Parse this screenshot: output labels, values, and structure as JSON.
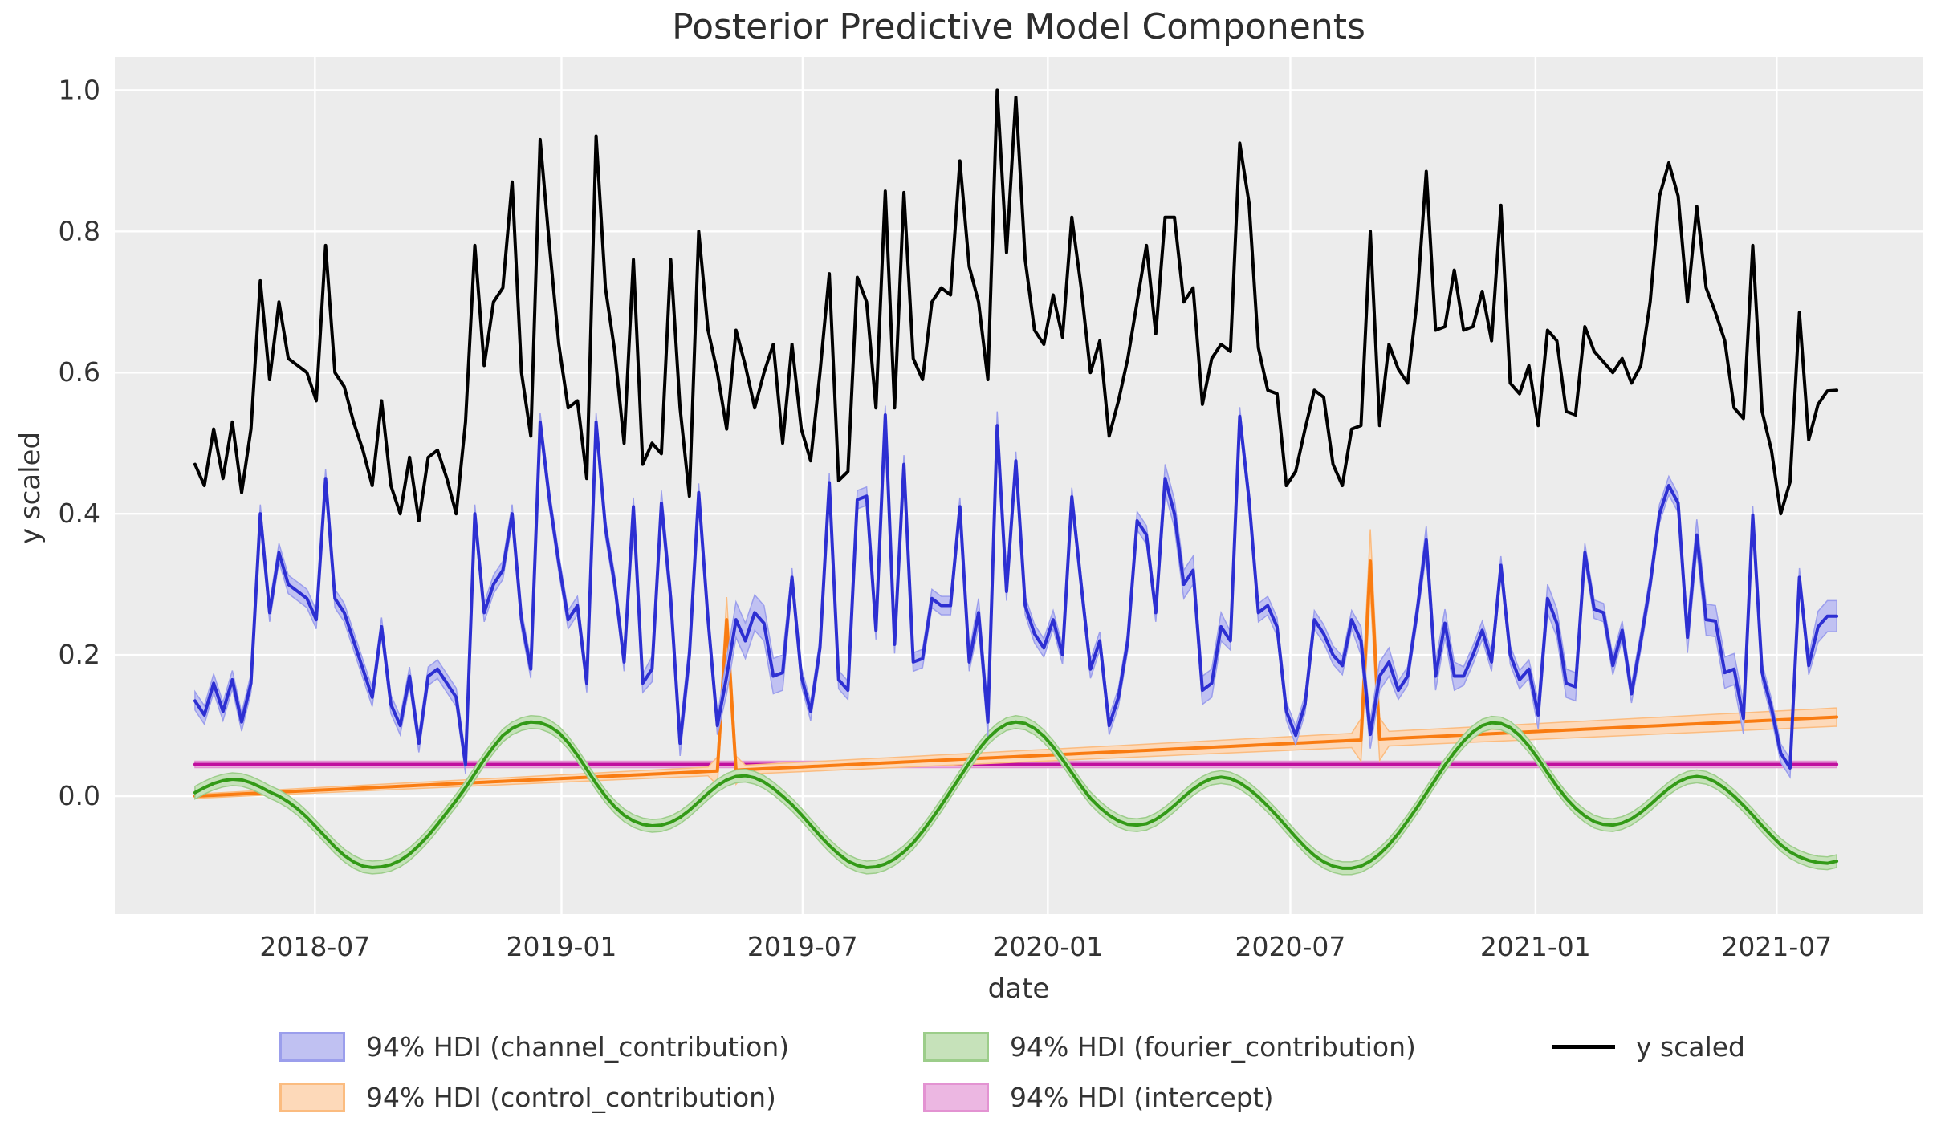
{
  "chart_data": {
    "type": "line",
    "title": "Posterior Predictive Model Components",
    "xlabel": "date",
    "ylabel": "y scaled",
    "background": {
      "plot_bg": "#ececec",
      "grid_color": "#ffffff",
      "figure_bg": "#ffffff",
      "text_color": "#333333"
    },
    "x_axis": {
      "start_date": "2018-04-02",
      "frequency": "weekly",
      "n_points": 177,
      "xlim_weeks": [
        -8.6,
        185.2
      ],
      "ticks": [
        {
          "week": 12.86,
          "label": "2018-07"
        },
        {
          "week": 39.29,
          "label": "2019-01"
        },
        {
          "week": 65.14,
          "label": "2019-07"
        },
        {
          "week": 91.43,
          "label": "2020-01"
        },
        {
          "week": 117.43,
          "label": "2020-07"
        },
        {
          "week": 143.71,
          "label": "2021-01"
        },
        {
          "week": 169.57,
          "label": "2021-07"
        }
      ]
    },
    "y_axis": {
      "ylim": [
        -0.167,
        1.047
      ],
      "ticks": [
        {
          "value": 0.0,
          "label": "0.0"
        },
        {
          "value": 0.2,
          "label": "0.2"
        },
        {
          "value": 0.4,
          "label": "0.4"
        },
        {
          "value": 0.6,
          "label": "0.6"
        },
        {
          "value": 0.8,
          "label": "0.8"
        },
        {
          "value": 1.0,
          "label": "1.0"
        }
      ]
    },
    "grid": true,
    "legend_position": "bottom",
    "series": {
      "y_scaled": {
        "label": "y scaled",
        "color": "#000000",
        "kind": "line",
        "values": [
          0.47,
          0.44,
          0.52,
          0.45,
          0.53,
          0.43,
          0.52,
          0.73,
          0.59,
          0.7,
          0.62,
          0.61,
          0.6,
          0.56,
          0.78,
          0.6,
          0.58,
          0.53,
          0.49,
          0.44,
          0.56,
          0.44,
          0.4,
          0.48,
          0.39,
          0.48,
          0.49,
          0.45,
          0.4,
          0.53,
          0.78,
          0.61,
          0.7,
          0.72,
          0.87,
          0.6,
          0.51,
          0.93,
          0.78,
          0.64,
          0.55,
          0.56,
          0.45,
          0.935,
          0.72,
          0.63,
          0.5,
          0.76,
          0.47,
          0.5,
          0.485,
          0.76,
          0.55,
          0.425,
          0.8,
          0.66,
          0.6,
          0.52,
          0.66,
          0.61,
          0.55,
          0.6,
          0.64,
          0.5,
          0.64,
          0.52,
          0.475,
          0.6,
          0.74,
          0.447,
          0.46,
          0.735,
          0.7,
          0.55,
          0.857,
          0.55,
          0.855,
          0.62,
          0.59,
          0.7,
          0.72,
          0.71,
          0.9,
          0.75,
          0.7,
          0.59,
          1.0,
          0.77,
          0.99,
          0.76,
          0.66,
          0.64,
          0.71,
          0.65,
          0.82,
          0.72,
          0.6,
          0.645,
          0.51,
          0.56,
          0.62,
          0.7,
          0.78,
          0.655,
          0.82,
          0.82,
          0.7,
          0.72,
          0.555,
          0.62,
          0.64,
          0.63,
          0.925,
          0.84,
          0.635,
          0.575,
          0.57,
          0.44,
          0.46,
          0.52,
          0.575,
          0.565,
          0.47,
          0.44,
          0.52,
          0.525,
          0.8,
          0.525,
          0.64,
          0.605,
          0.585,
          0.7,
          0.885,
          0.66,
          0.665,
          0.745,
          0.66,
          0.665,
          0.715,
          0.645,
          0.837,
          0.585,
          0.57,
          0.61,
          0.525,
          0.66,
          0.645,
          0.545,
          0.54,
          0.665,
          0.63,
          0.615,
          0.6,
          0.62,
          0.585,
          0.61,
          0.7,
          0.85,
          0.897,
          0.85,
          0.7,
          0.835,
          0.72,
          0.685,
          0.645,
          0.55,
          0.535,
          0.78,
          0.545,
          0.49,
          0.4,
          0.445,
          0.685,
          0.505,
          0.555,
          0.574,
          0.575
        ]
      },
      "channel_contribution": {
        "label": "94% HDI (channel_contribution)",
        "kind": "hdi_line",
        "color": "#2d2fd2",
        "band_color": "#c0c1f2",
        "band_border": "#9b9eec",
        "values": [
          0.135,
          0.115,
          0.16,
          0.12,
          0.165,
          0.105,
          0.16,
          0.4,
          0.26,
          0.345,
          0.3,
          0.29,
          0.28,
          0.25,
          0.45,
          0.28,
          0.26,
          0.22,
          0.18,
          0.14,
          0.24,
          0.13,
          0.1,
          0.17,
          0.075,
          0.17,
          0.18,
          0.16,
          0.14,
          0.045,
          0.4,
          0.26,
          0.3,
          0.32,
          0.4,
          0.25,
          0.18,
          0.53,
          0.42,
          0.33,
          0.25,
          0.27,
          0.16,
          0.53,
          0.38,
          0.3,
          0.19,
          0.41,
          0.16,
          0.18,
          0.415,
          0.28,
          0.075,
          0.2,
          0.43,
          0.25,
          0.1,
          0.17,
          0.25,
          0.22,
          0.26,
          0.245,
          0.17,
          0.175,
          0.31,
          0.17,
          0.12,
          0.21,
          0.444,
          0.165,
          0.15,
          0.42,
          0.425,
          0.235,
          0.54,
          0.215,
          0.47,
          0.19,
          0.195,
          0.28,
          0.27,
          0.27,
          0.41,
          0.19,
          0.26,
          0.105,
          0.525,
          0.29,
          0.475,
          0.27,
          0.23,
          0.21,
          0.25,
          0.2,
          0.424,
          0.3,
          0.18,
          0.22,
          0.1,
          0.14,
          0.22,
          0.39,
          0.37,
          0.26,
          0.45,
          0.4,
          0.3,
          0.32,
          0.15,
          0.16,
          0.24,
          0.22,
          0.538,
          0.42,
          0.26,
          0.27,
          0.24,
          0.12,
          0.086,
          0.13,
          0.25,
          0.23,
          0.2,
          0.185,
          0.25,
          0.22,
          0.0875,
          0.17,
          0.19,
          0.15,
          0.17,
          0.26,
          0.363,
          0.17,
          0.245,
          0.17,
          0.17,
          0.2,
          0.235,
          0.19,
          0.327,
          0.2,
          0.165,
          0.18,
          0.115,
          0.28,
          0.245,
          0.16,
          0.155,
          0.345,
          0.265,
          0.26,
          0.185,
          0.235,
          0.145,
          0.22,
          0.3,
          0.4,
          0.44,
          0.415,
          0.225,
          0.37,
          0.25,
          0.248,
          0.175,
          0.18,
          0.11,
          0.398,
          0.175,
          0.125,
          0.061,
          0.04,
          0.31,
          0.185,
          0.24,
          0.255,
          0.255
        ],
        "hdi_halfwidth": {
          "default": 0.013,
          "overrides": [
            [
              49,
              53,
              0.018
            ],
            [
              57,
              63,
              0.025
            ],
            [
              84,
              86,
              0.02
            ],
            [
              104,
              110,
              0.02
            ],
            [
              125,
              128,
              0.02
            ],
            [
              132,
              135,
              0.02
            ],
            [
              144,
              148,
              0.02
            ],
            [
              160,
              166,
              0.022
            ],
            [
              174,
              176,
              0.022
            ]
          ]
        }
      },
      "control_contribution": {
        "label": "94% HDI (control_contribution)",
        "kind": "hdi_line",
        "color": "#f97c12",
        "band_color": "#fdd9b9",
        "band_border": "#fbbc80",
        "trend": {
          "shape": "linear",
          "start_value": 0.0,
          "end_value": 0.112
        },
        "spikes": [
          {
            "week": 57,
            "value": 0.25
          },
          {
            "week": 126,
            "value": 0.333
          }
        ],
        "hdi_halfwidth": {
          "start": 0.003,
          "end": 0.013,
          "spike_overrides": [
            [
              56,
              0.02
            ],
            [
              57,
              0.032
            ],
            [
              58,
              0.02
            ],
            [
              125,
              0.03
            ],
            [
              126,
              0.045
            ],
            [
              127,
              0.03
            ]
          ]
        }
      },
      "fourier_contribution": {
        "label": "94% HDI (fourier_contribution)",
        "kind": "hdi_line",
        "color": "#339a17",
        "band_color": "#c6e2ba",
        "band_border": "#9ccd8a",
        "values": [
          0.005,
          0.012,
          0.018,
          0.022,
          0.024,
          0.023,
          0.019,
          0.013,
          0.006,
          0.0,
          -0.008,
          -0.018,
          -0.03,
          -0.044,
          -0.058,
          -0.072,
          -0.084,
          -0.093,
          -0.099,
          -0.101,
          -0.1,
          -0.097,
          -0.091,
          -0.082,
          -0.07,
          -0.056,
          -0.04,
          -0.023,
          -0.006,
          0.012,
          0.032,
          0.052,
          0.07,
          0.086,
          0.096,
          0.102,
          0.105,
          0.104,
          0.099,
          0.09,
          0.076,
          0.058,
          0.038,
          0.018,
          0.0,
          -0.015,
          -0.027,
          -0.035,
          -0.04,
          -0.042,
          -0.041,
          -0.037,
          -0.03,
          -0.02,
          -0.008,
          0.004,
          0.015,
          0.023,
          0.028,
          0.029,
          0.026,
          0.02,
          0.011,
          0.0,
          -0.012,
          -0.026,
          -0.041,
          -0.056,
          -0.07,
          -0.082,
          -0.092,
          -0.098,
          -0.101,
          -0.1,
          -0.096,
          -0.089,
          -0.079,
          -0.066,
          -0.05,
          -0.032,
          -0.013,
          0.007,
          0.027,
          0.047,
          0.066,
          0.082,
          0.094,
          0.102,
          0.105,
          0.103,
          0.096,
          0.085,
          0.07,
          0.052,
          0.033,
          0.014,
          -0.003,
          -0.016,
          -0.027,
          -0.035,
          -0.04,
          -0.041,
          -0.039,
          -0.033,
          -0.024,
          -0.013,
          -0.001,
          0.01,
          0.019,
          0.025,
          0.027,
          0.025,
          0.019,
          0.01,
          -0.001,
          -0.014,
          -0.028,
          -0.043,
          -0.058,
          -0.072,
          -0.084,
          -0.093,
          -0.099,
          -0.102,
          -0.102,
          -0.099,
          -0.092,
          -0.082,
          -0.069,
          -0.053,
          -0.035,
          -0.016,
          0.004,
          0.024,
          0.044,
          0.062,
          0.078,
          0.091,
          0.1,
          0.104,
          0.103,
          0.097,
          0.086,
          0.071,
          0.053,
          0.033,
          0.014,
          -0.003,
          -0.017,
          -0.028,
          -0.036,
          -0.04,
          -0.041,
          -0.038,
          -0.032,
          -0.023,
          -0.012,
          0.0,
          0.011,
          0.02,
          0.026,
          0.028,
          0.026,
          0.02,
          0.011,
          0.0,
          -0.013,
          -0.027,
          -0.042,
          -0.056,
          -0.069,
          -0.079,
          -0.086,
          -0.091,
          -0.094,
          -0.095,
          -0.092
        ],
        "hdi_halfwidth": {
          "default": 0.009
        }
      },
      "intercept": {
        "label": "94% HDI (intercept)",
        "kind": "hdi_line",
        "color": "#c00f9e",
        "band_color": "#ecb7e2",
        "band_border": "#e393d2",
        "constant_value": 0.045,
        "hdi_halfwidth": {
          "default": 0.0045
        }
      }
    }
  },
  "legend": {
    "order": [
      "channel_contribution",
      "control_contribution",
      "fourier_contribution",
      "intercept",
      "y_scaled"
    ]
  }
}
